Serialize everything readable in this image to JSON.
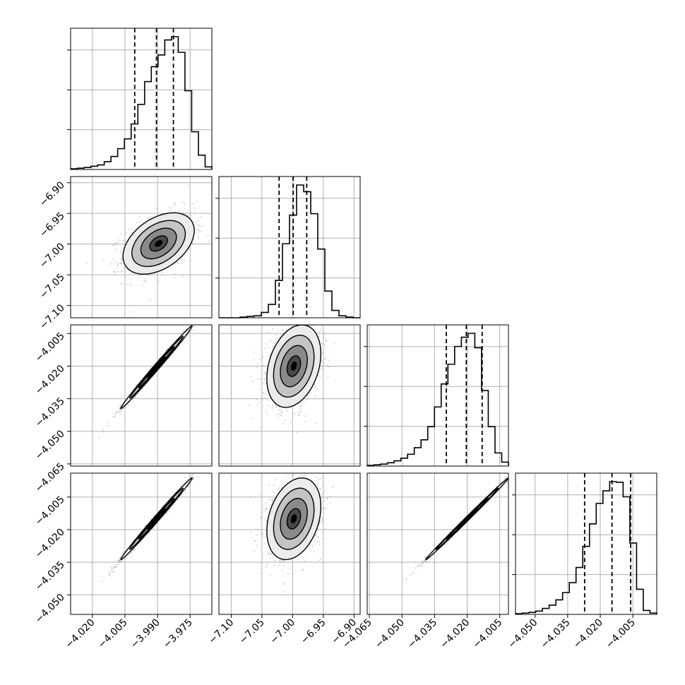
{
  "chart_data": {
    "type": "corner",
    "title": "",
    "grid": true,
    "colors": {
      "line": "#000000",
      "grid": "#b0b0b0",
      "points": "#9a9a9a",
      "density_scale": [
        "#f2f2f2",
        "#c8c8c8",
        "#8c8c8c",
        "#4a4a4a",
        "#000000"
      ]
    },
    "parameters": [
      {
        "index": 0,
        "range": [
          -4.03,
          -3.965
        ],
        "ticks": [
          -4.02,
          -4.005,
          -3.99,
          -3.975
        ],
        "tick_labels": [
          "−4.020",
          "−4.005",
          "−3.990",
          "−3.975"
        ],
        "quantiles": [
          -4.0005,
          -3.9905,
          -3.9827
        ]
      },
      {
        "index": 1,
        "range": [
          -7.12,
          -6.89
        ],
        "ticks": [
          -7.1,
          -7.05,
          -7.0,
          -6.95,
          -6.9
        ],
        "tick_labels": [
          "−7.10",
          "−7.05",
          "−7.00",
          "−6.95",
          "−6.90"
        ],
        "quantiles": [
          -7.022,
          -6.999,
          -6.977
        ]
      },
      {
        "index": 2,
        "range": [
          -4.066,
          -4.001
        ],
        "ticks": [
          -4.065,
          -4.05,
          -4.035,
          -4.02,
          -4.005
        ],
        "tick_labels": [
          "−4.065",
          "−4.050",
          "−4.035",
          "−4.020",
          "−4.005"
        ],
        "quantiles": [
          -4.0296,
          -4.0204,
          -4.0131
        ]
      },
      {
        "index": 3,
        "range": [
          -4.059,
          -3.994
        ],
        "ticks": [
          -4.05,
          -4.035,
          -4.02,
          -4.005
        ],
        "tick_labels": [
          "−4.050",
          "−4.035",
          "−4.020",
          "−4.005"
        ],
        "quantiles": [
          -4.0272,
          -4.0146,
          -4.006
        ]
      }
    ],
    "histograms": [
      {
        "param": 0,
        "counts": [
          1,
          2,
          3,
          5,
          7,
          12,
          20,
          32,
          47,
          70,
          100,
          135,
          158,
          176,
          199,
          204,
          180,
          121,
          58,
          22,
          4
        ]
      },
      {
        "param": 1,
        "counts": [
          0,
          0,
          0,
          1,
          2,
          3,
          8,
          20,
          56,
          111,
          154,
          199,
          189,
          156,
          103,
          40,
          11,
          3,
          1,
          0
        ]
      },
      {
        "param": 2,
        "counts": [
          1,
          2,
          3,
          5,
          8,
          12,
          18,
          28,
          40,
          60,
          90,
          125,
          155,
          182,
          196,
          202,
          180,
          115,
          60,
          20,
          6
        ]
      },
      {
        "param": 3,
        "counts": [
          1,
          2,
          3,
          5,
          9,
          14,
          22,
          33,
          48,
          71,
          103,
          137,
          168,
          187,
          201,
          200,
          178,
          108,
          38,
          6,
          2
        ]
      }
    ],
    "panels_2d": [
      {
        "x": 0,
        "y": 1,
        "center": [
          -3.9895,
          -6.999
        ],
        "spread": [
          0.0082,
          0.025
        ],
        "correlation": 0.42
      },
      {
        "x": 0,
        "y": 2,
        "center": [
          -3.9905,
          -4.0205
        ],
        "spread": [
          0.0082,
          0.0095
        ],
        "correlation": 0.995
      },
      {
        "x": 1,
        "y": 2,
        "center": [
          -6.998,
          -4.02
        ],
        "spread": [
          0.022,
          0.0095
        ],
        "correlation": 0.3
      },
      {
        "x": 0,
        "y": 3,
        "center": [
          -3.9905,
          -4.015
        ],
        "spread": [
          0.0082,
          0.0094
        ],
        "correlation": 0.995
      },
      {
        "x": 1,
        "y": 3,
        "center": [
          -6.998,
          -4.015
        ],
        "spread": [
          0.022,
          0.0094
        ],
        "correlation": 0.3
      },
      {
        "x": 2,
        "y": 3,
        "center": [
          -4.02,
          -4.015
        ],
        "spread": [
          0.0095,
          0.0094
        ],
        "correlation": 0.998
      }
    ],
    "contour_levels_sigma": [
      0.5,
      1.0,
      1.5,
      2.0
    ]
  }
}
